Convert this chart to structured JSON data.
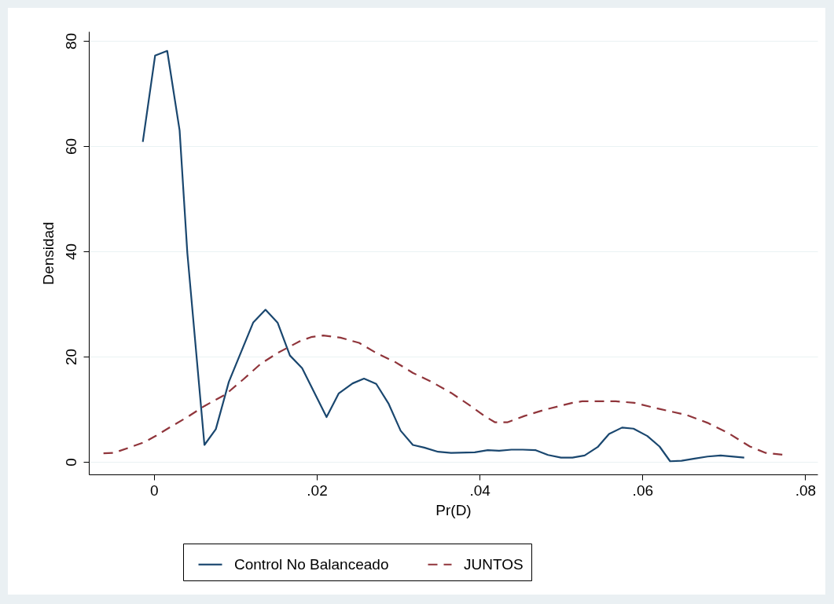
{
  "chart_data": {
    "type": "line",
    "xlabel": "Pr(D)",
    "ylabel": "Densidad",
    "xlim": [
      -0.008,
      0.0815
    ],
    "ylim": [
      -2.4,
      81.8
    ],
    "xticks": [
      0,
      {
        "value": 0.02,
        "label": ".02"
      },
      {
        "value": 0.04,
        "label": ".04"
      },
      {
        "value": 0.06,
        "label": ".06"
      },
      {
        "value": 0.08,
        "label": ".08"
      }
    ],
    "yticks": [
      0,
      20,
      40,
      60,
      80
    ],
    "grid": "y",
    "legend": "bottom",
    "series": [
      {
        "name": "Control No Balanceado",
        "color": "#1a476f",
        "line_style": "solid",
        "x": [
          -0.00137,
          0.00014,
          0.00163,
          0.00315,
          0.0041,
          0.0062,
          0.0076,
          0.0092,
          0.0122,
          0.0137,
          0.0152,
          0.0167,
          0.0182,
          0.0212,
          0.0227,
          0.0244,
          0.0258,
          0.0273,
          0.0288,
          0.0303,
          0.0318,
          0.0332,
          0.0349,
          0.0365,
          0.0394,
          0.041,
          0.0424,
          0.0439,
          0.0453,
          0.0469,
          0.0484,
          0.05,
          0.0514,
          0.0529,
          0.0545,
          0.0559,
          0.0575,
          0.0589,
          0.0606,
          0.0621,
          0.0634,
          0.0648,
          0.0664,
          0.068,
          0.0696,
          0.0725
        ],
        "values": [
          60.8,
          77.2,
          78.1,
          63,
          39.7,
          3.2,
          6.2,
          15.2,
          26.5,
          28.9,
          26.4,
          20.2,
          17.8,
          8.5,
          13,
          14.9,
          15.8,
          14.8,
          11.1,
          5.9,
          3.2,
          2.7,
          1.9,
          1.7,
          1.8,
          2.2,
          2.1,
          2.3,
          2.3,
          2.2,
          1.3,
          0.8,
          0.8,
          1.2,
          2.8,
          5.3,
          6.5,
          6.3,
          4.9,
          2.9,
          0.1,
          0.2,
          0.6,
          1,
          1.2,
          0.8
        ]
      },
      {
        "name": "JUNTOS",
        "color": "#90353b",
        "line_style": "dashed",
        "x": [
          -0.0062,
          -0.0049,
          -0.0012,
          0.0003,
          0.002,
          0.0041,
          0.0062,
          0.0088,
          0.011,
          0.0131,
          0.0152,
          0.0179,
          0.0193,
          0.0208,
          0.0229,
          0.0252,
          0.0274,
          0.0297,
          0.0318,
          0.0342,
          0.0365,
          0.0389,
          0.0406,
          0.0419,
          0.0434,
          0.0455,
          0.048,
          0.0514,
          0.0526,
          0.0567,
          0.059,
          0.0622,
          0.0654,
          0.068,
          0.0706,
          0.0732,
          0.0751,
          0.0775
        ],
        "values": [
          1.6,
          1.7,
          3.7,
          5,
          6.6,
          8.5,
          10.6,
          12.8,
          15.7,
          18.6,
          20.7,
          22.9,
          23.7,
          24,
          23.6,
          22.6,
          20.6,
          18.9,
          16.9,
          15.1,
          13.1,
          10.6,
          8.7,
          7.5,
          7.5,
          8.7,
          9.9,
          11.2,
          11.5,
          11.5,
          11.2,
          10,
          8.9,
          7.4,
          5.4,
          2.9,
          1.7,
          1.3
        ]
      }
    ]
  }
}
